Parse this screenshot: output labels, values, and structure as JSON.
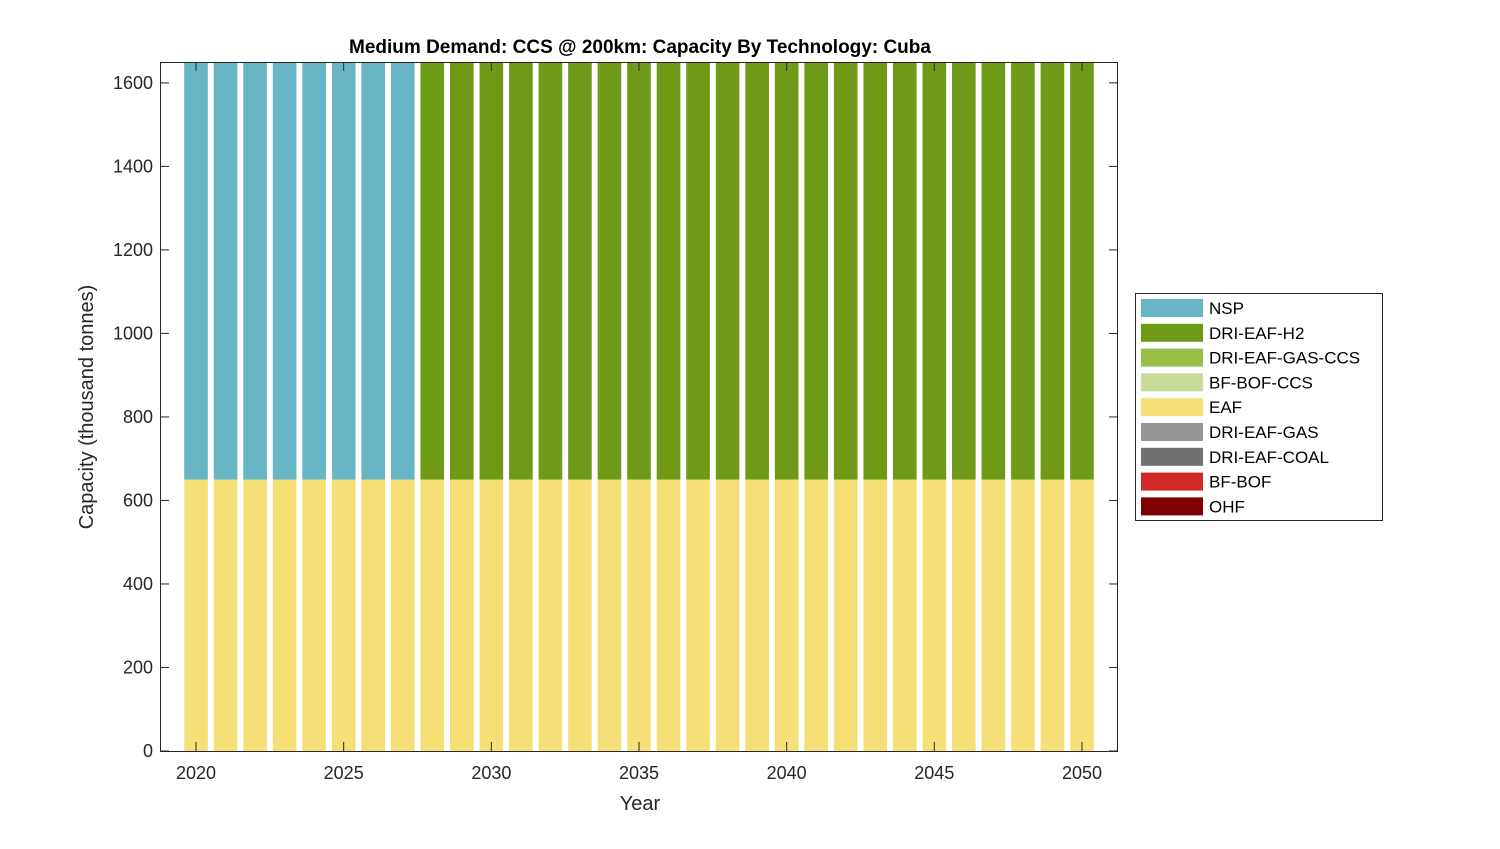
{
  "chart_data": {
    "type": "bar",
    "stacked": true,
    "title": "Medium Demand: CCS @ 200km: Capacity By Technology: Cuba",
    "xlabel": "Year",
    "ylabel": "Capacity (thousand tonnes)",
    "xlim": [
      2018.78,
      2051.22
    ],
    "ylim": [
      0,
      1650
    ],
    "xticks": [
      2020,
      2025,
      2030,
      2035,
      2040,
      2045,
      2050
    ],
    "yticks": [
      0,
      200,
      400,
      600,
      800,
      1000,
      1200,
      1400,
      1600
    ],
    "grid": false,
    "legend_placement": "right",
    "x": [
      2020,
      2021,
      2022,
      2023,
      2024,
      2025,
      2026,
      2027,
      2028,
      2029,
      2030,
      2031,
      2032,
      2033,
      2034,
      2035,
      2036,
      2037,
      2038,
      2039,
      2040,
      2041,
      2042,
      2043,
      2044,
      2045,
      2046,
      2047,
      2048,
      2049,
      2050
    ],
    "series": [
      {
        "name": "OHF",
        "color": "#7f0000",
        "values": [
          0,
          0,
          0,
          0,
          0,
          0,
          0,
          0,
          0,
          0,
          0,
          0,
          0,
          0,
          0,
          0,
          0,
          0,
          0,
          0,
          0,
          0,
          0,
          0,
          0,
          0,
          0,
          0,
          0,
          0,
          0
        ]
      },
      {
        "name": "BF-BOF",
        "color": "#d12a26",
        "values": [
          0,
          0,
          0,
          0,
          0,
          0,
          0,
          0,
          0,
          0,
          0,
          0,
          0,
          0,
          0,
          0,
          0,
          0,
          0,
          0,
          0,
          0,
          0,
          0,
          0,
          0,
          0,
          0,
          0,
          0,
          0
        ]
      },
      {
        "name": "DRI-EAF-COAL",
        "color": "#707070",
        "values": [
          0,
          0,
          0,
          0,
          0,
          0,
          0,
          0,
          0,
          0,
          0,
          0,
          0,
          0,
          0,
          0,
          0,
          0,
          0,
          0,
          0,
          0,
          0,
          0,
          0,
          0,
          0,
          0,
          0,
          0,
          0
        ]
      },
      {
        "name": "DRI-EAF-GAS",
        "color": "#969696",
        "values": [
          0,
          0,
          0,
          0,
          0,
          0,
          0,
          0,
          0,
          0,
          0,
          0,
          0,
          0,
          0,
          0,
          0,
          0,
          0,
          0,
          0,
          0,
          0,
          0,
          0,
          0,
          0,
          0,
          0,
          0,
          0
        ]
      },
      {
        "name": "EAF",
        "color": "#f7df78",
        "values": [
          650,
          650,
          650,
          650,
          650,
          650,
          650,
          650,
          650,
          650,
          650,
          650,
          650,
          650,
          650,
          650,
          650,
          650,
          650,
          650,
          650,
          650,
          650,
          650,
          650,
          650,
          650,
          650,
          650,
          650,
          650
        ]
      },
      {
        "name": "BF-BOF-CCS",
        "color": "#c8dc98",
        "values": [
          0,
          0,
          0,
          0,
          0,
          0,
          0,
          0,
          0,
          0,
          0,
          0,
          0,
          0,
          0,
          0,
          0,
          0,
          0,
          0,
          0,
          0,
          0,
          0,
          0,
          0,
          0,
          0,
          0,
          0,
          0
        ]
      },
      {
        "name": "DRI-EAF-GAS-CCS",
        "color": "#9abf48",
        "values": [
          0,
          0,
          0,
          0,
          0,
          0,
          0,
          0,
          0,
          0,
          0,
          0,
          0,
          0,
          0,
          0,
          0,
          0,
          0,
          0,
          0,
          0,
          0,
          0,
          0,
          0,
          0,
          0,
          0,
          0,
          0
        ]
      },
      {
        "name": "DRI-EAF-H2",
        "color": "#6e9a18",
        "values": [
          0,
          0,
          0,
          0,
          0,
          0,
          0,
          0,
          1000,
          1000,
          1000,
          1000,
          1000,
          1000,
          1000,
          1000,
          1000,
          1000,
          1000,
          1000,
          1000,
          1000,
          1000,
          1000,
          1000,
          1000,
          1000,
          1000,
          1000,
          1000,
          1000
        ]
      },
      {
        "name": "NSP",
        "color": "#68b5c5",
        "values": [
          1000,
          1000,
          1000,
          1000,
          1000,
          1000,
          1000,
          1000,
          0,
          0,
          0,
          0,
          0,
          0,
          0,
          0,
          0,
          0,
          0,
          0,
          0,
          0,
          0,
          0,
          0,
          0,
          0,
          0,
          0,
          0,
          0
        ]
      }
    ],
    "legend_order": [
      "NSP",
      "DRI-EAF-H2",
      "DRI-EAF-GAS-CCS",
      "BF-BOF-CCS",
      "EAF",
      "DRI-EAF-GAS",
      "DRI-EAF-COAL",
      "BF-BOF",
      "OHF"
    ]
  }
}
